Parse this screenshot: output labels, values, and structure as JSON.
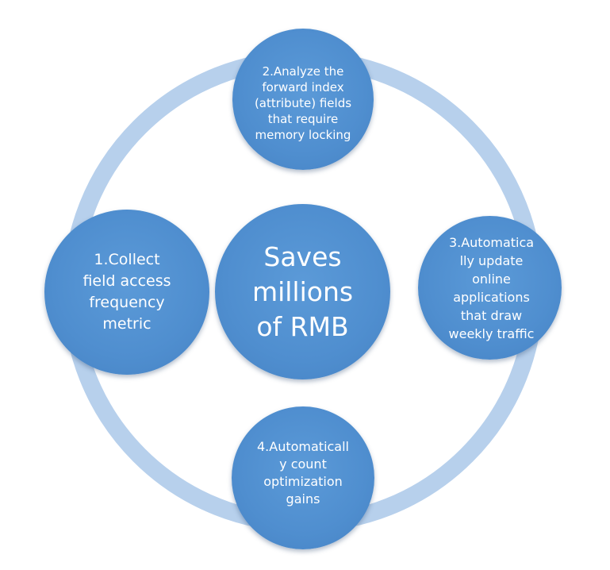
{
  "diagram": {
    "center": "Saves\nmillions\nof RMB",
    "steps": [
      "2.Analyze the\nforward index\n(attribute) fields\nthat require\nmemory locking",
      "1.Collect\nfield access\nfrequency\nmetric",
      "3.Automatica\nlly update\nonline\napplications\nthat draw\nweekly traffic",
      "4.Automaticall\ny count\noptimization\ngains"
    ],
    "colors": {
      "node": "#4f8ecf",
      "ring": "#b7d0ec",
      "text": "#ffffff"
    }
  }
}
